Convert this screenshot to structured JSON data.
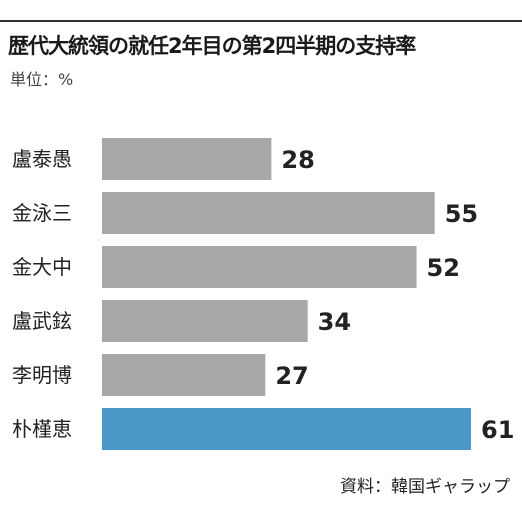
{
  "chart_data": {
    "type": "bar",
    "orientation": "horizontal",
    "title": "歴代大統領の就任2年目の第2四半期の支持率",
    "unit_label": "単位：%",
    "source": "資料：韓国ギャラップ",
    "categories": [
      "盧泰愚",
      "金泳三",
      "金大中",
      "盧武鉉",
      "李明博",
      "朴槿恵"
    ],
    "values": [
      28,
      55,
      52,
      34,
      27,
      61
    ],
    "highlight_index": 5,
    "xlim": [
      0,
      61
    ],
    "grid": false,
    "legend": "none"
  },
  "colors": {
    "bar": "#a8a8a8",
    "highlight": "#4a97c8",
    "text": "#222222"
  }
}
